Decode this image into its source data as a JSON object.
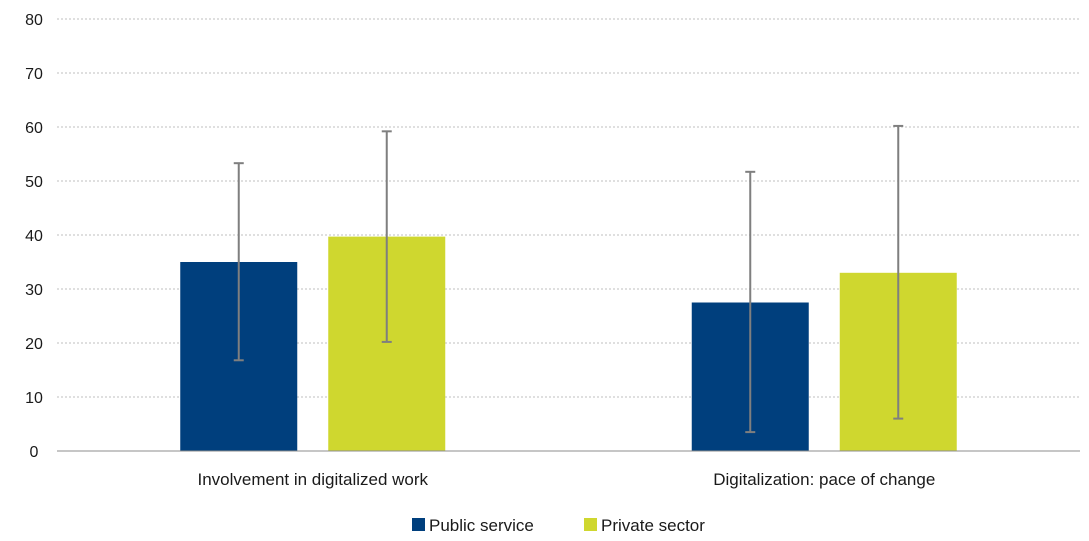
{
  "chart_data": {
    "type": "bar",
    "categories": [
      "Involvement in digitalized work",
      "Digitalization: pace of change"
    ],
    "series": [
      {
        "name": "Public service",
        "color": "#003f7d",
        "values": [
          35,
          27.5
        ],
        "error_low": [
          16.8,
          3.5
        ],
        "error_high": [
          53.3,
          51.7
        ]
      },
      {
        "name": "Private sector",
        "color": "#cfd72f",
        "values": [
          39.7,
          33
        ],
        "error_low": [
          20.2,
          6
        ],
        "error_high": [
          59.2,
          60.2
        ]
      }
    ],
    "ylim": [
      0,
      80
    ],
    "yticks": [
      0,
      10,
      20,
      30,
      40,
      50,
      60,
      70,
      80
    ],
    "grid": true,
    "legend_position": "bottom-center",
    "error_bar_color": "#7f7f7f",
    "grid_color": "#bfbfbf",
    "title": "",
    "xlabel": "",
    "ylabel": ""
  }
}
